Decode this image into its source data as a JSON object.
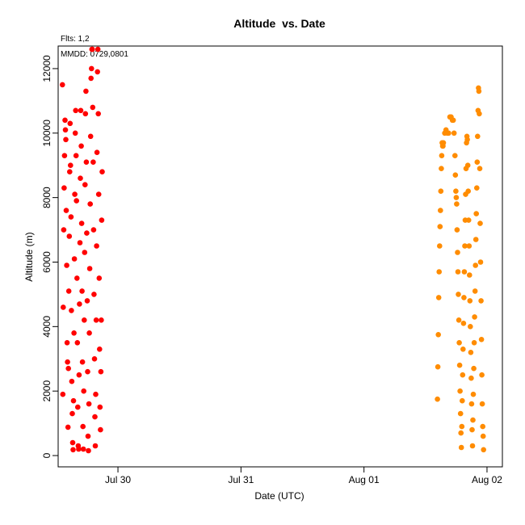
{
  "chart_data": {
    "type": "scatter",
    "title": "Altitude  vs. Date",
    "xlabel": "Date (UTC)",
    "ylabel": "Altitude (m)",
    "annotations": [
      "Flts: 1,2",
      "MMDD: 0729,0801"
    ],
    "x_ticks": [
      {
        "label": "Jul 30",
        "value": "2009-07-30"
      },
      {
        "label": "Jul 31",
        "value": "2009-07-31"
      },
      {
        "label": "Aug 01",
        "value": "2009-08-01"
      },
      {
        "label": "Aug 02",
        "value": "2009-08-02"
      }
    ],
    "y_ticks": [
      0,
      2000,
      4000,
      6000,
      8000,
      10000,
      12000
    ],
    "xlim": [
      "2009-07-29T12:20",
      "2009-08-02T03:00"
    ],
    "ylim": [
      -350,
      12700
    ],
    "grid": false,
    "colors": {
      "flight1": "#ff0000",
      "flight2": "#ff8c00",
      "axis": "#000000"
    },
    "series": [
      {
        "color": "#ff0000",
        "points": [
          [
            "2009-07-29T13:10",
            11500
          ],
          [
            "2009-07-29T13:15",
            1900
          ],
          [
            "2009-07-29T13:20",
            4600
          ],
          [
            "2009-07-29T13:25",
            7000
          ],
          [
            "2009-07-29T13:30",
            8300
          ],
          [
            "2009-07-29T13:35",
            9300
          ],
          [
            "2009-07-29T13:40",
            10400
          ],
          [
            "2009-07-29T13:45",
            10100
          ],
          [
            "2009-07-29T13:50",
            9800
          ],
          [
            "2009-07-29T13:55",
            7600
          ],
          [
            "2009-07-29T14:00",
            5900
          ],
          [
            "2009-07-29T14:05",
            3500
          ],
          [
            "2009-07-29T14:10",
            2900
          ],
          [
            "2009-07-29T14:15",
            880
          ],
          [
            "2009-07-29T14:20",
            2700
          ],
          [
            "2009-07-29T14:25",
            5100
          ],
          [
            "2009-07-29T14:30",
            6800
          ],
          [
            "2009-07-29T14:35",
            8800
          ],
          [
            "2009-07-29T14:40",
            10300
          ],
          [
            "2009-07-29T14:45",
            9000
          ],
          [
            "2009-07-29T14:50",
            7400
          ],
          [
            "2009-07-29T14:55",
            4500
          ],
          [
            "2009-07-29T15:00",
            2300
          ],
          [
            "2009-07-29T15:05",
            1300
          ],
          [
            "2009-07-29T15:10",
            400
          ],
          [
            "2009-07-29T15:15",
            180
          ],
          [
            "2009-07-29T15:20",
            1700
          ],
          [
            "2009-07-29T15:25",
            3800
          ],
          [
            "2009-07-29T15:30",
            6100
          ],
          [
            "2009-07-29T15:35",
            8100
          ],
          [
            "2009-07-29T15:40",
            10000
          ],
          [
            "2009-07-29T15:45",
            10700
          ],
          [
            "2009-07-29T15:50",
            9300
          ],
          [
            "2009-07-29T15:55",
            7900
          ],
          [
            "2009-07-29T16:00",
            5500
          ],
          [
            "2009-07-29T16:05",
            3500
          ],
          [
            "2009-07-29T16:10",
            1500
          ],
          [
            "2009-07-29T16:15",
            300
          ],
          [
            "2009-07-29T16:20",
            200
          ],
          [
            "2009-07-29T16:25",
            2500
          ],
          [
            "2009-07-29T16:30",
            4700
          ],
          [
            "2009-07-29T16:35",
            6600
          ],
          [
            "2009-07-29T16:40",
            8600
          ],
          [
            "2009-07-29T16:45",
            10700
          ],
          [
            "2009-07-29T16:50",
            9600
          ],
          [
            "2009-07-29T16:55",
            7200
          ],
          [
            "2009-07-29T17:00",
            5100
          ],
          [
            "2009-07-29T17:05",
            2900
          ],
          [
            "2009-07-29T17:10",
            900
          ],
          [
            "2009-07-29T17:15",
            200
          ],
          [
            "2009-07-29T17:20",
            2000
          ],
          [
            "2009-07-29T17:25",
            4200
          ],
          [
            "2009-07-29T17:30",
            6300
          ],
          [
            "2009-07-29T17:35",
            8400
          ],
          [
            "2009-07-29T17:40",
            10600
          ],
          [
            "2009-07-29T17:45",
            11300
          ],
          [
            "2009-07-29T17:50",
            9100
          ],
          [
            "2009-07-29T17:55",
            6900
          ],
          [
            "2009-07-29T18:00",
            4800
          ],
          [
            "2009-07-29T18:05",
            2600
          ],
          [
            "2009-07-29T18:10",
            600
          ],
          [
            "2009-07-29T18:15",
            150
          ],
          [
            "2009-07-29T18:20",
            1600
          ],
          [
            "2009-07-29T18:25",
            3800
          ],
          [
            "2009-07-29T18:30",
            5800
          ],
          [
            "2009-07-29T18:35",
            7800
          ],
          [
            "2009-07-29T18:40",
            9900
          ],
          [
            "2009-07-29T18:45",
            11700
          ],
          [
            "2009-07-29T18:50",
            12000
          ],
          [
            "2009-07-29T18:55",
            12600
          ],
          [
            "2009-07-29T19:00",
            12600
          ],
          [
            "2009-07-29T19:05",
            10800
          ],
          [
            "2009-07-29T19:10",
            9100
          ],
          [
            "2009-07-29T19:15",
            7000
          ],
          [
            "2009-07-29T19:20",
            5000
          ],
          [
            "2009-07-29T19:25",
            3000
          ],
          [
            "2009-07-29T19:30",
            1200
          ],
          [
            "2009-07-29T19:35",
            300
          ],
          [
            "2009-07-29T19:40",
            1900
          ],
          [
            "2009-07-29T19:45",
            4200
          ],
          [
            "2009-07-29T19:50",
            6500
          ],
          [
            "2009-07-29T19:55",
            9400
          ],
          [
            "2009-07-29T20:00",
            11900
          ],
          [
            "2009-07-29T20:05",
            12600
          ],
          [
            "2009-07-29T20:10",
            10600
          ],
          [
            "2009-07-29T20:15",
            8100
          ],
          [
            "2009-07-29T20:20",
            5500
          ],
          [
            "2009-07-29T20:25",
            3300
          ],
          [
            "2009-07-29T20:30",
            1500
          ],
          [
            "2009-07-29T20:35",
            800
          ],
          [
            "2009-07-29T20:40",
            2600
          ],
          [
            "2009-07-29T20:45",
            4200
          ],
          [
            "2009-07-29T20:50",
            7300
          ],
          [
            "2009-07-29T20:55",
            8800
          ]
        ]
      },
      {
        "color": "#ff8c00",
        "points": [
          [
            "2009-08-01T14:20",
            1750
          ],
          [
            "2009-08-01T14:25",
            2750
          ],
          [
            "2009-08-01T14:30",
            3750
          ],
          [
            "2009-08-01T14:35",
            4900
          ],
          [
            "2009-08-01T14:40",
            5700
          ],
          [
            "2009-08-01T14:45",
            6500
          ],
          [
            "2009-08-01T14:50",
            7100
          ],
          [
            "2009-08-01T14:55",
            7600
          ],
          [
            "2009-08-01T15:00",
            8200
          ],
          [
            "2009-08-01T15:05",
            8900
          ],
          [
            "2009-08-01T15:10",
            9300
          ],
          [
            "2009-08-01T15:15",
            9700
          ],
          [
            "2009-08-01T15:20",
            9600
          ],
          [
            "2009-08-01T15:25",
            9600
          ],
          [
            "2009-08-01T15:30",
            9700
          ],
          [
            "2009-08-01T15:45",
            10000
          ],
          [
            "2009-08-01T16:00",
            10100
          ],
          [
            "2009-08-01T16:15",
            10000
          ],
          [
            "2009-08-01T16:30",
            10000
          ],
          [
            "2009-08-01T16:45",
            10500
          ],
          [
            "2009-08-01T17:00",
            10500
          ],
          [
            "2009-08-01T17:15",
            10400
          ],
          [
            "2009-08-01T17:25",
            10400
          ],
          [
            "2009-08-01T17:35",
            10000
          ],
          [
            "2009-08-01T17:45",
            9300
          ],
          [
            "2009-08-01T17:50",
            8700
          ],
          [
            "2009-08-01T17:55",
            8200
          ],
          [
            "2009-08-01T18:00",
            8000
          ],
          [
            "2009-08-01T18:05",
            7800
          ],
          [
            "2009-08-01T18:10",
            7000
          ],
          [
            "2009-08-01T18:15",
            6300
          ],
          [
            "2009-08-01T18:20",
            5700
          ],
          [
            "2009-08-01T18:25",
            5000
          ],
          [
            "2009-08-01T18:30",
            4200
          ],
          [
            "2009-08-01T18:35",
            3500
          ],
          [
            "2009-08-01T18:40",
            2800
          ],
          [
            "2009-08-01T18:45",
            2000
          ],
          [
            "2009-08-01T18:50",
            1300
          ],
          [
            "2009-08-01T18:55",
            700
          ],
          [
            "2009-08-01T19:00",
            250
          ],
          [
            "2009-08-01T19:05",
            900
          ],
          [
            "2009-08-01T19:10",
            1700
          ],
          [
            "2009-08-01T19:15",
            2500
          ],
          [
            "2009-08-01T19:20",
            3300
          ],
          [
            "2009-08-01T19:25",
            4100
          ],
          [
            "2009-08-01T19:30",
            4900
          ],
          [
            "2009-08-01T19:35",
            5700
          ],
          [
            "2009-08-01T19:40",
            6500
          ],
          [
            "2009-08-01T19:45",
            7300
          ],
          [
            "2009-08-01T19:50",
            8100
          ],
          [
            "2009-08-01T19:55",
            8900
          ],
          [
            "2009-08-01T20:00",
            9700
          ],
          [
            "2009-08-01T20:05",
            9900
          ],
          [
            "2009-08-01T20:10",
            9800
          ],
          [
            "2009-08-01T20:15",
            9000
          ],
          [
            "2009-08-01T20:20",
            8200
          ],
          [
            "2009-08-01T20:25",
            7300
          ],
          [
            "2009-08-01T20:30",
            6500
          ],
          [
            "2009-08-01T20:35",
            5600
          ],
          [
            "2009-08-01T20:40",
            4800
          ],
          [
            "2009-08-01T20:45",
            4000
          ],
          [
            "2009-08-01T20:50",
            3200
          ],
          [
            "2009-08-01T20:55",
            2400
          ],
          [
            "2009-08-01T21:00",
            1600
          ],
          [
            "2009-08-01T21:05",
            800
          ],
          [
            "2009-08-01T21:10",
            300
          ],
          [
            "2009-08-01T21:15",
            1100
          ],
          [
            "2009-08-01T21:20",
            1900
          ],
          [
            "2009-08-01T21:25",
            2700
          ],
          [
            "2009-08-01T21:30",
            3500
          ],
          [
            "2009-08-01T21:35",
            4300
          ],
          [
            "2009-08-01T21:40",
            5100
          ],
          [
            "2009-08-01T21:45",
            5900
          ],
          [
            "2009-08-01T21:50",
            6700
          ],
          [
            "2009-08-01T21:55",
            7500
          ],
          [
            "2009-08-01T22:00",
            8300
          ],
          [
            "2009-08-01T22:05",
            9100
          ],
          [
            "2009-08-01T22:10",
            9900
          ],
          [
            "2009-08-01T22:15",
            10700
          ],
          [
            "2009-08-01T22:20",
            11400
          ],
          [
            "2009-08-01T22:25",
            11300
          ],
          [
            "2009-08-01T22:30",
            10600
          ],
          [
            "2009-08-01T22:35",
            8900
          ],
          [
            "2009-08-01T22:40",
            7200
          ],
          [
            "2009-08-01T22:45",
            6000
          ],
          [
            "2009-08-01T22:50",
            4800
          ],
          [
            "2009-08-01T22:55",
            3600
          ],
          [
            "2009-08-01T23:00",
            2500
          ],
          [
            "2009-08-01T23:05",
            1600
          ],
          [
            "2009-08-01T23:10",
            900
          ],
          [
            "2009-08-01T23:15",
            600
          ],
          [
            "2009-08-01T23:20",
            180
          ]
        ]
      }
    ]
  }
}
